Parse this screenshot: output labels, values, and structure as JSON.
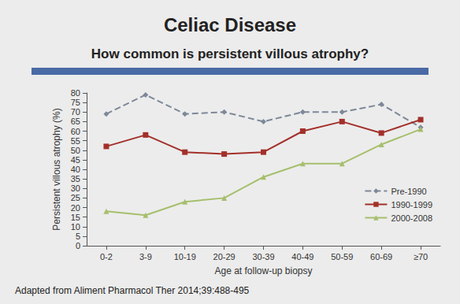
{
  "chart_data": {
    "type": "line",
    "title": "Celiac Disease",
    "subtitle": "How common is persistent villous atrophy?",
    "x_label": "Age at follow-up biopsy",
    "y_label": "Persistent villous atrophy (%)",
    "annotations": [
      "Adapted from Aliment Pharmacol Ther 2014;39:488-495"
    ],
    "categories": [
      "0-2",
      "3-9",
      "10-19",
      "20-29",
      "30-39",
      "40-49",
      "50-59",
      "60-69",
      "≥70"
    ],
    "series": [
      {
        "name": "Pre-1990",
        "color": "#7d8898",
        "marker": "diamond",
        "line_style": "dashed",
        "values": [
          69,
          79,
          69,
          70,
          65,
          70,
          70,
          74,
          62
        ]
      },
      {
        "name": "1990-1999",
        "color": "#a3302a",
        "marker": "square",
        "line_style": "solid",
        "values": [
          52,
          58,
          49,
          48,
          49,
          60,
          65,
          59,
          66
        ]
      },
      {
        "name": "2000-2008",
        "color": "#a6bf6c",
        "marker": "triangle",
        "line_style": "solid",
        "values": [
          18,
          16,
          23,
          25,
          36,
          43,
          43,
          53,
          61
        ]
      }
    ],
    "ylim": [
      0,
      80
    ],
    "yticks": [
      0,
      5,
      10,
      15,
      20,
      25,
      30,
      35,
      40,
      45,
      50,
      55,
      60,
      65,
      70,
      75,
      80
    ],
    "grid": false,
    "legend": "right"
  }
}
